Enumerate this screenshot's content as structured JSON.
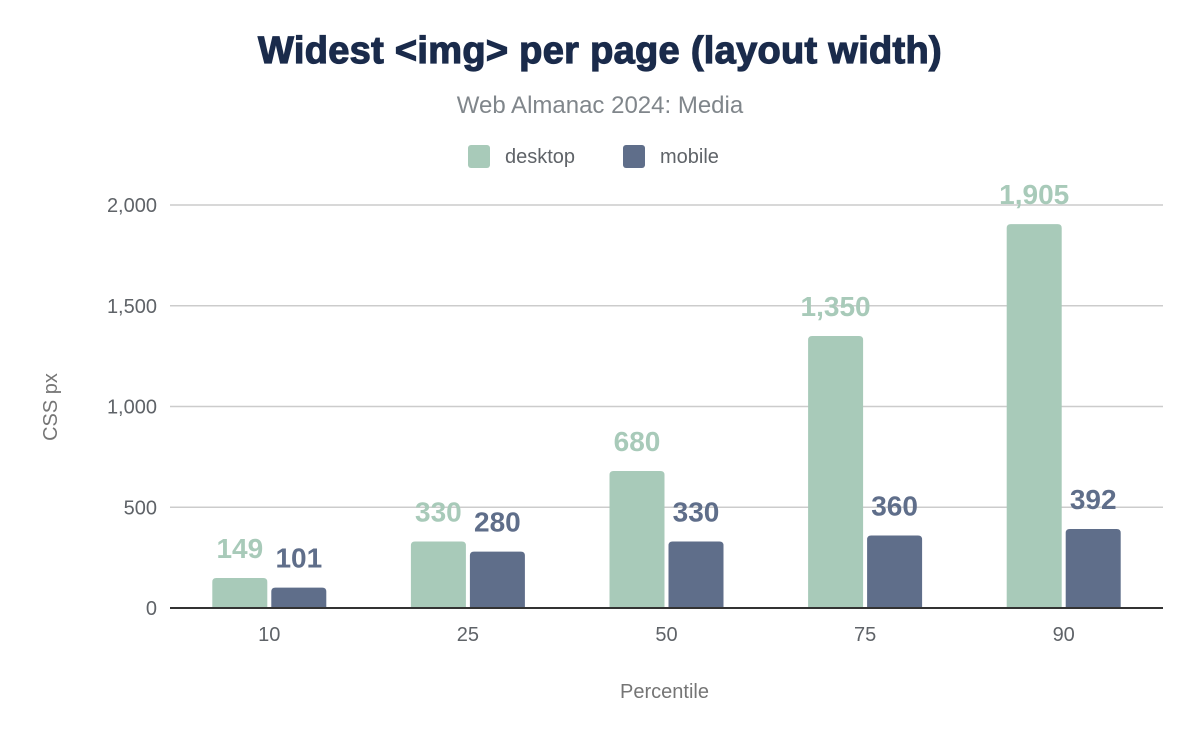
{
  "chart_data": {
    "type": "bar",
    "title": "Widest <img> per page (layout width)",
    "subtitle": "Web Almanac 2024: Media",
    "xlabel": "Percentile",
    "ylabel": "CSS px",
    "categories": [
      "10",
      "25",
      "50",
      "75",
      "90"
    ],
    "series": [
      {
        "name": "desktop",
        "color": "#a8cab9",
        "values": [
          149,
          330,
          680,
          1350,
          1905
        ],
        "labels": [
          "149",
          "330",
          "680",
          "1,350",
          "1,905"
        ]
      },
      {
        "name": "mobile",
        "color": "#5f6e8a",
        "values": [
          101,
          280,
          330,
          360,
          392
        ],
        "labels": [
          "101",
          "280",
          "330",
          "360",
          "392"
        ]
      }
    ],
    "ylim": [
      0,
      2000
    ],
    "yticks": [
      0,
      500,
      1000,
      1500,
      2000
    ],
    "ytick_labels": [
      "0",
      "500",
      "1,000",
      "1,500",
      "2,000"
    ],
    "grid": true,
    "legend_position": "top-center"
  }
}
